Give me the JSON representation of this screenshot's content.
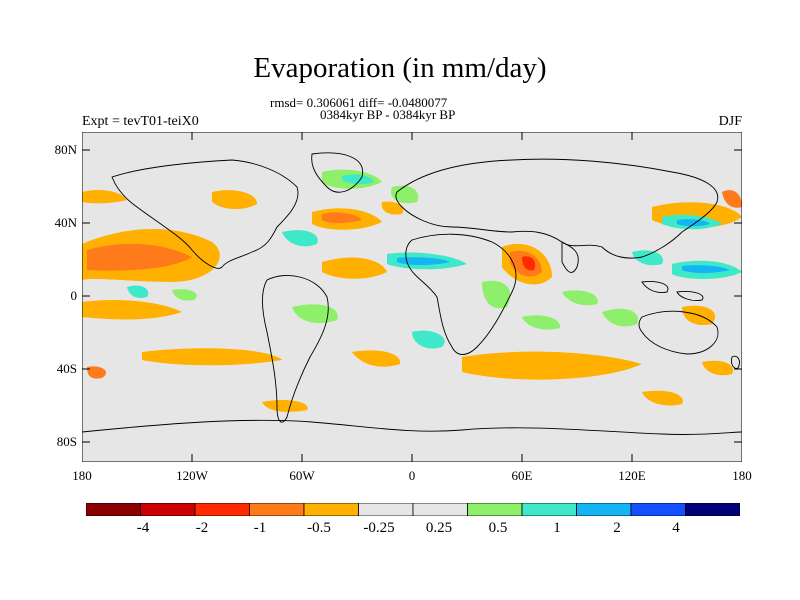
{
  "title": "Evaporation (in mm/day)",
  "subtitle_line1": "rmsd= 0.306061 diff= -0.0480077",
  "subtitle_line2": "0384kyr BP - 0384kyr BP",
  "left_label": "Expt = tevT01-teiX0",
  "right_label": "DJF",
  "y_ticks": [
    "80N",
    "40N",
    "0",
    "40S",
    "80S"
  ],
  "x_ticks": [
    "180",
    "120W",
    "60W",
    "0",
    "60E",
    "120E",
    "180"
  ],
  "colorbar": {
    "colors": [
      "#8b0000",
      "#cc0000",
      "#ff2a00",
      "#ff7a1a",
      "#ffb000",
      "#e6e6e6",
      "#e6e6e6",
      "#8ef06a",
      "#3fe8c9",
      "#14b4f5",
      "#1450ff",
      "#00007a"
    ],
    "labels": [
      "-4",
      "-2",
      "-1",
      "-0.5",
      "-0.25",
      "0.25",
      "0.5",
      "1",
      "2",
      "4"
    ]
  },
  "colors": {
    "background_zero": "#e6e6e6",
    "land_outline": "#000000"
  }
}
